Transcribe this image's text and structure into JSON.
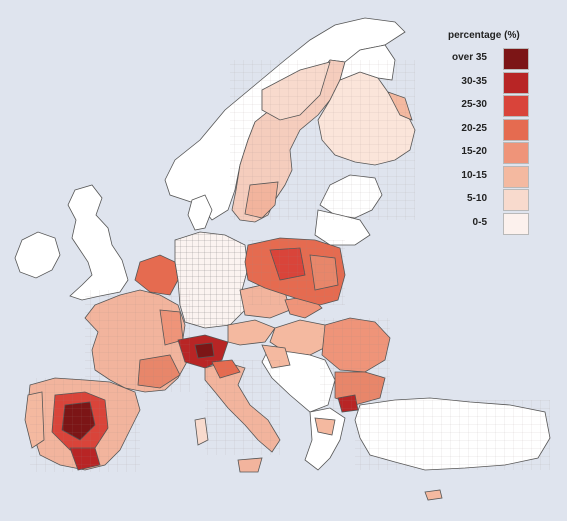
{
  "legend": {
    "title": "percentage (%)",
    "items": [
      {
        "label": "over 35",
        "color": "#7c1516"
      },
      {
        "label": "30-35",
        "color": "#b82525"
      },
      {
        "label": "25-30",
        "color": "#d9443a"
      },
      {
        "label": "20-25",
        "color": "#e56b50"
      },
      {
        "label": "15-20",
        "color": "#ef9479"
      },
      {
        "label": "10-15",
        "color": "#f4b9a0"
      },
      {
        "label": "5-10",
        "color": "#f8dacd"
      },
      {
        "label": "0-5",
        "color": "#fcf1ed"
      }
    ]
  },
  "colors": {
    "background": "#dfe4ee",
    "no_data": "#ffffff",
    "border": "#555555"
  }
}
